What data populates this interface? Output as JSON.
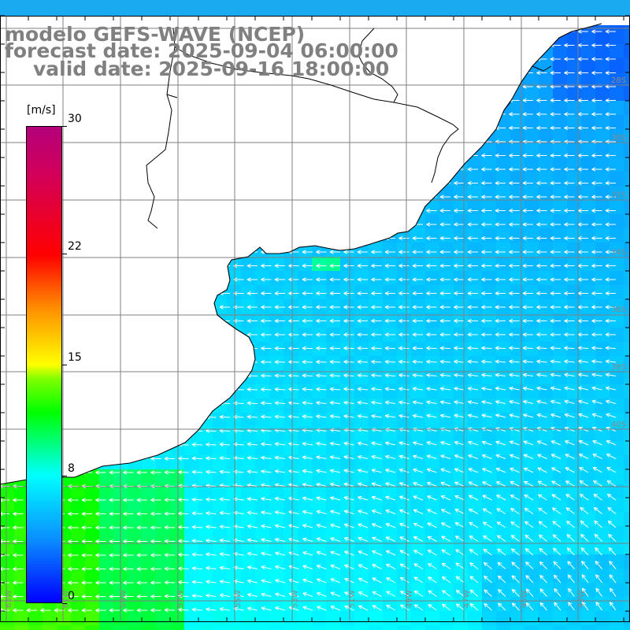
{
  "title": {
    "line1": "modelo GEFS-WAVE (NCEP)",
    "line2": "forecast date: 2025-09-04 06:00:00",
    "line3": "valid date: 2025-09-16 18:00:00"
  },
  "colorbar": {
    "unit": "[m/s]",
    "min": 0,
    "max": 30,
    "tick_values": [
      "30",
      "22",
      "15",
      "8",
      "0"
    ],
    "tick_numbers": [
      30,
      22,
      15,
      8,
      0
    ],
    "colors": [
      "#0000ff",
      "#0a8cff",
      "#00ffff",
      "#00ff00",
      "#ffff00",
      "#ff8c00",
      "#ff0000",
      "#b4007a"
    ]
  },
  "map": {
    "lon_labels": [
      "63W",
      "61W",
      "59W",
      "57W",
      "55W",
      "53W",
      "51W",
      "49W",
      "47W",
      "45W",
      "43W",
      "41W"
    ],
    "lat_labels": [
      "28S",
      "30S",
      "32S",
      "34S",
      "36S",
      "38S",
      "40S"
    ],
    "land_color": "#ffffff",
    "coast_color": "#000000",
    "grid_color": "#808080",
    "arrow_color": "#ffffff",
    "wind_field": {
      "direction": "easterly to southeasterly, arrows pointing west / north-west",
      "speed_range_ms": [
        5,
        11
      ]
    }
  }
}
